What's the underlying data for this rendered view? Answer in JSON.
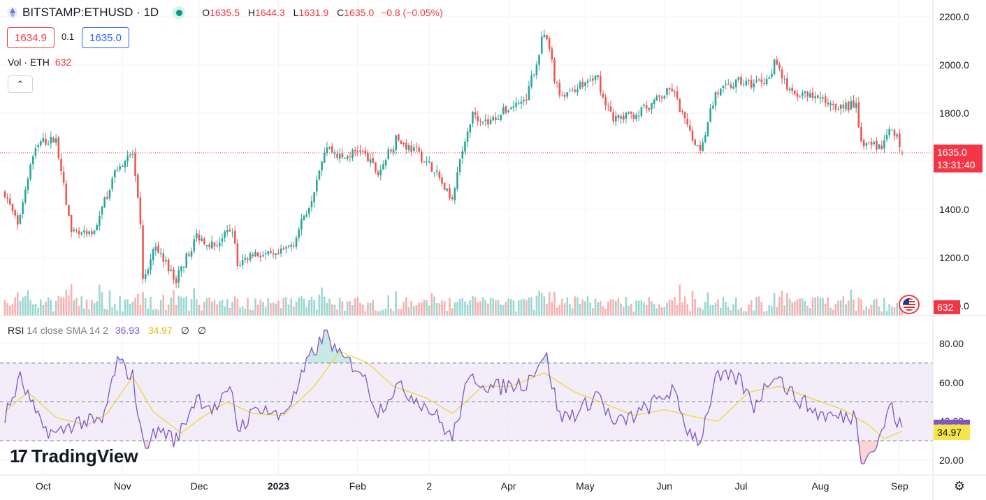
{
  "header": {
    "symbol_text": "BITSTAMP:ETHUSD · 1D",
    "ohlc": {
      "o_label": "O",
      "o_value": "1635.5",
      "h_label": "H",
      "h_value": "1644.3",
      "l_label": "L",
      "l_value": "1631.9",
      "c_label": "C",
      "c_value": "1635.0",
      "change": "−0.8 (−0.05%)"
    },
    "sell_price": "1634.9",
    "spread": "0.1",
    "buy_price": "1635.0"
  },
  "volume_legend": {
    "label": "Vol · ETH",
    "value": "632"
  },
  "rsi_legend": {
    "label": "RSI",
    "params": "14 close SMA 14 2",
    "rsi_value": "36.93",
    "sma_value": "34.97",
    "null1": "∅",
    "null2": "∅"
  },
  "branding": {
    "logo_text": "TradingView"
  },
  "price_axis": {
    "labels": [
      "2200.0",
      "2000.0",
      "1800.0",
      "1600.0",
      "1400.0",
      "1200.0",
      "1000.0"
    ],
    "current_price": "1635.0",
    "countdown": "13:31:40",
    "volume_tag": "632"
  },
  "rsi_axis": {
    "labels": [
      "80.00",
      "60.00",
      "40.00",
      "20.00"
    ],
    "rsi_tag": "36.93",
    "sma_tag": "34.97"
  },
  "time_axis": {
    "labels": [
      "Oct",
      "Nov",
      "Dec",
      "2023",
      "Feb",
      "2",
      "Apr",
      "May",
      "Jun",
      "Jul",
      "Aug",
      "Sep"
    ]
  },
  "colors": {
    "up": "#26a69a",
    "down": "#ef5350",
    "rsi": "#7e57c2",
    "sma": "#f0d540",
    "rsi_band": "#ede7f6"
  },
  "chart_data": [
    {
      "type": "candlestick",
      "title": "BITSTAMP:ETHUSD · 1D",
      "x_start": "2022-09-16",
      "x_step": "1 day",
      "ylim": [
        1000,
        2200
      ],
      "y_ticks": [
        1000,
        1200,
        1400,
        1600,
        1800,
        2000,
        2200
      ],
      "close_anchors": [
        [
          "2022-09-16",
          1470
        ],
        [
          "2022-09-21",
          1330
        ],
        [
          "2022-09-26",
          1600
        ],
        [
          "2022-09-30",
          1680
        ],
        [
          "2022-10-06",
          1690
        ],
        [
          "2022-10-12",
          1300
        ],
        [
          "2022-10-20",
          1290
        ],
        [
          "2022-10-30",
          1580
        ],
        [
          "2022-11-05",
          1630
        ],
        [
          "2022-11-08",
          1330
        ],
        [
          "2022-11-09",
          1100
        ],
        [
          "2022-11-14",
          1250
        ],
        [
          "2022-11-22",
          1110
        ],
        [
          "2022-11-30",
          1290
        ],
        [
          "2022-12-07",
          1250
        ],
        [
          "2022-12-14",
          1320
        ],
        [
          "2022-12-16",
          1170
        ],
        [
          "2022-12-22",
          1220
        ],
        [
          "2022-12-31",
          1200
        ],
        [
          "2023-01-07",
          1265
        ],
        [
          "2023-01-13",
          1420
        ],
        [
          "2023-01-20",
          1660
        ],
        [
          "2023-01-26",
          1610
        ],
        [
          "2023-02-02",
          1650
        ],
        [
          "2023-02-09",
          1550
        ],
        [
          "2023-02-16",
          1690
        ],
        [
          "2023-02-24",
          1640
        ],
        [
          "2023-03-03",
          1565
        ],
        [
          "2023-03-10",
          1430
        ],
        [
          "2023-03-15",
          1700
        ],
        [
          "2023-03-18",
          1800
        ],
        [
          "2023-03-24",
          1760
        ],
        [
          "2023-04-01",
          1820
        ],
        [
          "2023-04-08",
          1860
        ],
        [
          "2023-04-14",
          2100
        ],
        [
          "2023-04-16",
          2110
        ],
        [
          "2023-04-19",
          1950
        ],
        [
          "2023-04-21",
          1870
        ],
        [
          "2023-04-26",
          1900
        ],
        [
          "2023-05-06",
          1950
        ],
        [
          "2023-05-08",
          1860
        ],
        [
          "2023-05-12",
          1770
        ],
        [
          "2023-05-22",
          1800
        ],
        [
          "2023-05-31",
          1870
        ],
        [
          "2023-06-04",
          1900
        ],
        [
          "2023-06-10",
          1740
        ],
        [
          "2023-06-15",
          1650
        ],
        [
          "2023-06-21",
          1880
        ],
        [
          "2023-06-30",
          1930
        ],
        [
          "2023-07-05",
          1920
        ],
        [
          "2023-07-13",
          1950
        ],
        [
          "2023-07-14",
          2010
        ],
        [
          "2023-07-20",
          1890
        ],
        [
          "2023-07-31",
          1860
        ],
        [
          "2023-08-08",
          1830
        ],
        [
          "2023-08-15",
          1830
        ],
        [
          "2023-08-17",
          1680
        ],
        [
          "2023-08-25",
          1660
        ],
        [
          "2023-08-28",
          1730
        ],
        [
          "2023-08-31",
          1700
        ],
        [
          "2023-09-02",
          1635
        ]
      ],
      "last_bar": {
        "open": 1635.5,
        "high": 1644.3,
        "low": 1631.9,
        "close": 1635.0
      }
    },
    {
      "type": "bar",
      "title": "Vol · ETH",
      "last_value": 632
    },
    {
      "type": "line",
      "title": "RSI 14 close SMA 14 2",
      "ylim": [
        10,
        88
      ],
      "bands": {
        "upper": 70,
        "middle": 50,
        "lower": 30
      },
      "series": [
        {
          "name": "RSI",
          "anchors": [
            [
              "2022-09-16",
              42
            ],
            [
              "2022-09-22",
              62
            ],
            [
              "2022-09-30",
              38
            ],
            [
              "2022-10-06",
              33
            ],
            [
              "2022-10-14",
              40
            ],
            [
              "2022-10-24",
              39
            ],
            [
              "2022-10-30",
              71
            ],
            [
              "2022-11-05",
              63
            ],
            [
              "2022-11-09",
              28
            ],
            [
              "2022-11-16",
              36
            ],
            [
              "2022-11-22",
              30
            ],
            [
              "2022-11-30",
              53
            ],
            [
              "2022-12-07",
              46
            ],
            [
              "2022-12-14",
              56
            ],
            [
              "2022-12-16",
              36
            ],
            [
              "2022-12-25",
              48
            ],
            [
              "2023-01-01",
              42
            ],
            [
              "2023-01-07",
              52
            ],
            [
              "2023-01-13",
              72
            ],
            [
              "2023-01-20",
              86
            ],
            [
              "2023-01-24",
              74
            ],
            [
              "2023-02-02",
              67
            ],
            [
              "2023-02-09",
              45
            ],
            [
              "2023-02-16",
              58
            ],
            [
              "2023-02-24",
              52
            ],
            [
              "2023-03-03",
              44
            ],
            [
              "2023-03-10",
              31
            ],
            [
              "2023-03-15",
              55
            ],
            [
              "2023-03-18",
              63
            ],
            [
              "2023-03-26",
              57
            ],
            [
              "2023-04-08",
              60
            ],
            [
              "2023-04-14",
              73
            ],
            [
              "2023-04-16",
              72
            ],
            [
              "2023-04-21",
              42
            ],
            [
              "2023-04-29",
              45
            ],
            [
              "2023-05-06",
              55
            ],
            [
              "2023-05-12",
              38
            ],
            [
              "2023-05-22",
              44
            ],
            [
              "2023-06-04",
              56
            ],
            [
              "2023-06-10",
              36
            ],
            [
              "2023-06-15",
              30
            ],
            [
              "2023-06-21",
              62
            ],
            [
              "2023-06-30",
              62
            ],
            [
              "2023-07-06",
              48
            ],
            [
              "2023-07-13",
              63
            ],
            [
              "2023-07-14",
              66
            ],
            [
              "2023-07-20",
              55
            ],
            [
              "2023-07-31",
              44
            ],
            [
              "2023-08-08",
              42
            ],
            [
              "2023-08-15",
              43
            ],
            [
              "2023-08-17",
              22
            ],
            [
              "2023-08-21",
              24
            ],
            [
              "2023-08-25",
              33
            ],
            [
              "2023-08-28",
              49
            ],
            [
              "2023-08-31",
              40
            ],
            [
              "2023-09-02",
              36.93
            ]
          ]
        },
        {
          "name": "SMA",
          "anchors": [
            [
              "2022-09-16",
              45
            ],
            [
              "2022-09-25",
              55
            ],
            [
              "2022-10-06",
              42
            ],
            [
              "2022-10-18",
              38
            ],
            [
              "2022-10-26",
              44
            ],
            [
              "2022-11-05",
              63
            ],
            [
              "2022-11-13",
              45
            ],
            [
              "2022-11-24",
              34
            ],
            [
              "2022-12-02",
              42
            ],
            [
              "2022-12-12",
              50
            ],
            [
              "2022-12-22",
              44
            ],
            [
              "2023-01-03",
              43
            ],
            [
              "2023-01-15",
              58
            ],
            [
              "2023-01-25",
              76
            ],
            [
              "2023-02-05",
              70
            ],
            [
              "2023-02-15",
              58
            ],
            [
              "2023-02-28",
              52
            ],
            [
              "2023-03-10",
              44
            ],
            [
              "2023-03-22",
              58
            ],
            [
              "2023-04-02",
              58
            ],
            [
              "2023-04-15",
              65
            ],
            [
              "2023-04-27",
              55
            ],
            [
              "2023-05-07",
              50
            ],
            [
              "2023-05-20",
              43
            ],
            [
              "2023-06-01",
              46
            ],
            [
              "2023-06-14",
              42
            ],
            [
              "2023-06-22",
              40
            ],
            [
              "2023-07-04",
              55
            ],
            [
              "2023-07-16",
              58
            ],
            [
              "2023-07-28",
              52
            ],
            [
              "2023-08-10",
              46
            ],
            [
              "2023-08-20",
              38
            ],
            [
              "2023-08-26",
              31
            ],
            [
              "2023-09-02",
              34.97
            ]
          ]
        }
      ]
    }
  ]
}
